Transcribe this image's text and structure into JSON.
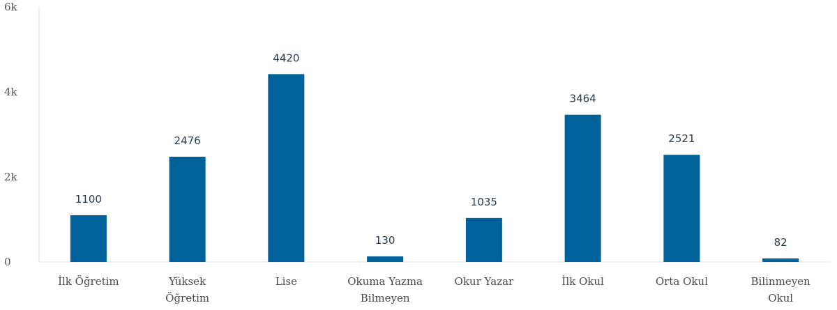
{
  "chart_data": {
    "type": "bar",
    "categories": [
      [
        "İlk Öğretim"
      ],
      [
        "Yüksek",
        "Öğretim"
      ],
      [
        "Lise"
      ],
      [
        "Okuma Yazma",
        "Bilmeyen"
      ],
      [
        "Okur Yazar"
      ],
      [
        "İlk Okul"
      ],
      [
        "Orta Okul"
      ],
      [
        "Bilinmeyen",
        "Okul"
      ]
    ],
    "values": [
      1100,
      2476,
      4420,
      130,
      1035,
      3464,
      2521,
      82
    ],
    "ylim": [
      0,
      6000
    ],
    "yticks": [
      {
        "value": 0,
        "label": "0"
      },
      {
        "value": 2000,
        "label": "2k"
      },
      {
        "value": 4000,
        "label": "4k"
      },
      {
        "value": 6000,
        "label": "6k"
      }
    ],
    "data_labels": true,
    "grid": false,
    "bar_color": "#00629b",
    "axis_color": "#e0e0e0"
  }
}
